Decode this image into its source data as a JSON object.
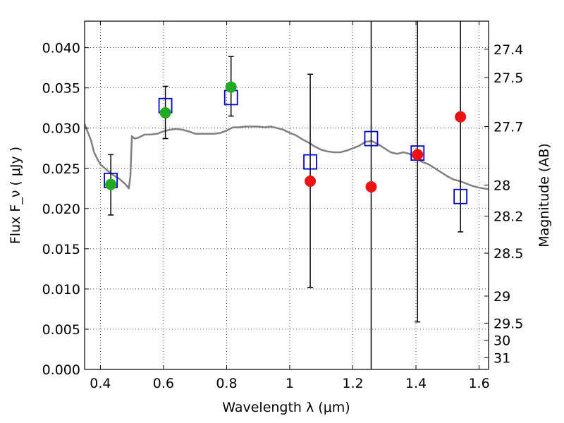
{
  "chart_data": {
    "type": "scatter",
    "xlabel": "Wavelength  λ (μm)",
    "ylabel": "Flux  F_ν  ( μJy )",
    "y2label": "Magnitude (AB)",
    "xlim": [
      0.35,
      1.63
    ],
    "ylim": [
      0.0,
      0.0433
    ],
    "grid": true,
    "x_ticks": [
      "0.4",
      "0.6",
      "0.8",
      "1",
      "1.2",
      "1.4",
      "1.6"
    ],
    "y_ticks": [
      "0.000",
      "0.005",
      "0.010",
      "0.015",
      "0.020",
      "0.025",
      "0.030",
      "0.035",
      "0.040"
    ],
    "mag_ticks": [
      "27.4",
      "27.5",
      "27.7",
      "28",
      "28.2",
      "28.5",
      "29",
      "29.5",
      "30",
      "31"
    ],
    "colors": {
      "model": "#808080",
      "model_points": "#0000cc",
      "detections": "#22aa22",
      "limits": "#ee1111",
      "errorbar": "#000000"
    },
    "series": [
      {
        "type": "line",
        "x": [
          0.35,
          0.36,
          0.37,
          0.38,
          0.39,
          0.4,
          0.42,
          0.44,
          0.46,
          0.48,
          0.49,
          0.495,
          0.5,
          0.505,
          0.51,
          0.52,
          0.54,
          0.56,
          0.58,
          0.6,
          0.62,
          0.64,
          0.66,
          0.68,
          0.7,
          0.72,
          0.74,
          0.76,
          0.78,
          0.8,
          0.82,
          0.84,
          0.86,
          0.88,
          0.9,
          0.92,
          0.94,
          0.96,
          0.98,
          1.0,
          1.02,
          1.04,
          1.06,
          1.08,
          1.1,
          1.12,
          1.14,
          1.16,
          1.18,
          1.2,
          1.22,
          1.24,
          1.26,
          1.28,
          1.3,
          1.32,
          1.34,
          1.36,
          1.38,
          1.4,
          1.42,
          1.44,
          1.46,
          1.48,
          1.5,
          1.52,
          1.54,
          1.56,
          1.58,
          1.6,
          1.63
        ],
        "y": [
          0.0305,
          0.0295,
          0.0285,
          0.027,
          0.0262,
          0.0255,
          0.0248,
          0.0242,
          0.0237,
          0.023,
          0.0225,
          0.024,
          0.029,
          0.0288,
          0.0287,
          0.0288,
          0.0292,
          0.0292,
          0.0293,
          0.0296,
          0.0298,
          0.0299,
          0.0298,
          0.0296,
          0.0293,
          0.0293,
          0.0293,
          0.0293,
          0.0294,
          0.0297,
          0.0301,
          0.0301,
          0.0302,
          0.0302,
          0.0302,
          0.0301,
          0.0302,
          0.03,
          0.0298,
          0.0294,
          0.0291,
          0.0286,
          0.0282,
          0.0277,
          0.0273,
          0.0271,
          0.027,
          0.027,
          0.0272,
          0.0275,
          0.0278,
          0.0283,
          0.0284,
          0.028,
          0.0275,
          0.027,
          0.0268,
          0.027,
          0.0268,
          0.0262,
          0.0258,
          0.0255,
          0.025,
          0.0245,
          0.024,
          0.0236,
          0.0234,
          0.0231,
          0.0228,
          0.0226,
          0.0224
        ]
      },
      {
        "type": "scatter",
        "marker": "open-square",
        "x": [
          0.433,
          0.606,
          0.814,
          1.065,
          1.258,
          1.405,
          1.541
        ],
        "y": [
          0.0235,
          0.0328,
          0.0338,
          0.0258,
          0.0287,
          0.0269,
          0.0215
        ]
      },
      {
        "type": "scatter",
        "marker": "filled-circle",
        "x": [
          0.433,
          0.606,
          0.814
        ],
        "y": [
          0.023,
          0.0319,
          0.0351
        ],
        "yerr_low": [
          0.0192,
          0.0287,
          0.0315
        ],
        "yerr_high": [
          0.0267,
          0.0352,
          0.0389
        ]
      },
      {
        "type": "scatter",
        "marker": "filled-circle",
        "x": [
          1.065,
          1.258,
          1.405,
          1.541
        ],
        "y": [
          0.0234,
          0.0227,
          0.0267,
          0.0314
        ],
        "yerr_low": [
          0.0102,
          0.0,
          0.0059,
          0.0171
        ],
        "yerr_high": [
          0.0367,
          0.0433,
          0.0433,
          0.0433
        ]
      }
    ]
  }
}
